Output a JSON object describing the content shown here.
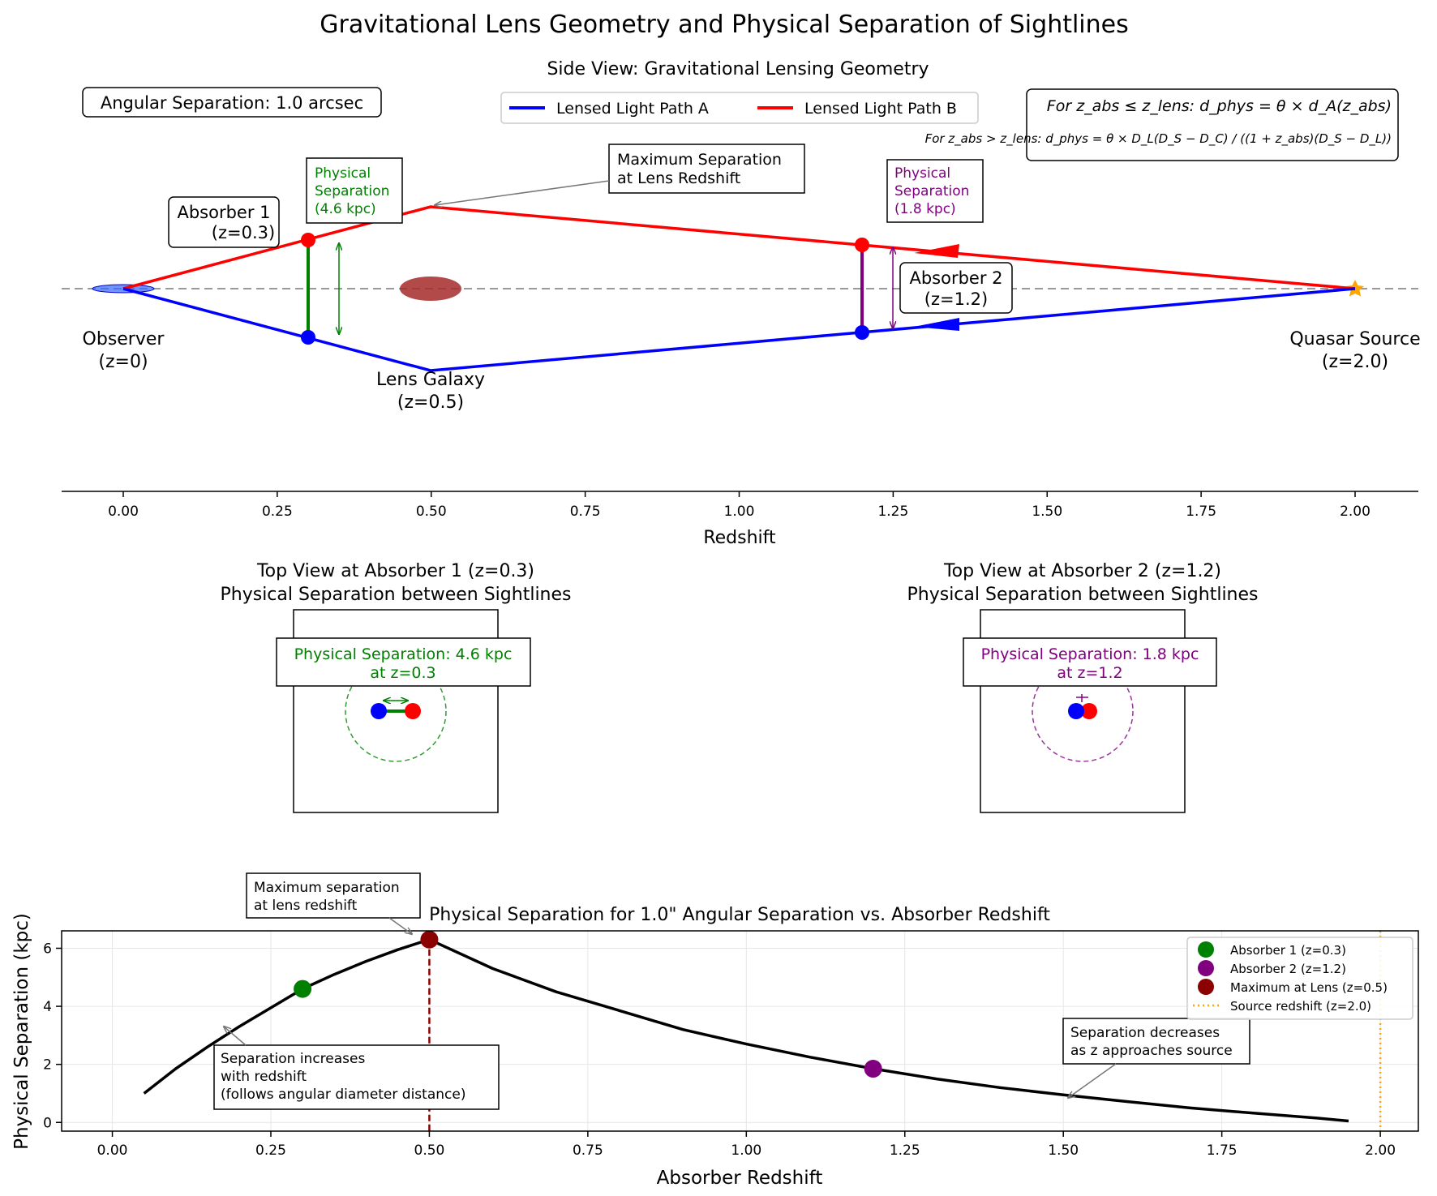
{
  "title": "Gravitational Lens Geometry and Physical Separation of Sightlines",
  "side_view": {
    "title": "Side View: Gravitational Lensing Geometry",
    "angular_box": "Angular Separation: 1.0 arcsec",
    "legend": [
      "Lensed Light Path A",
      "Lensed Light Path B"
    ],
    "formula_line1": "For z_abs ≤ z_lens: d_phys = θ × d_A(z_abs)",
    "formula_line2": "For z_abs > z_lens: d_phys = θ × D_L(D_S − D_C) / ((1 + z_abs)(D_S − D_L))",
    "observer": [
      "Observer",
      "(z=0)"
    ],
    "lens": [
      "Lens Galaxy",
      "(z=0.5)"
    ],
    "source": [
      "Quasar Source",
      "(z=2.0)"
    ],
    "absorber1": [
      "Absorber 1",
      "(z=0.3)"
    ],
    "absorber2": [
      "Absorber 2",
      "(z=1.2)"
    ],
    "sep1": [
      "Physical",
      "Separation",
      "(4.6 kpc)"
    ],
    "sep2": [
      "Physical",
      "Separation",
      "(1.8 kpc)"
    ],
    "max_note": [
      "Maximum Separation",
      "at Lens Redshift"
    ],
    "xlabel": "Redshift",
    "xticks": [
      "0.00",
      "0.25",
      "0.50",
      "0.75",
      "1.00",
      "1.25",
      "1.50",
      "1.75",
      "2.00"
    ]
  },
  "top_view_1": {
    "title": [
      "Top View at Absorber 1 (z=0.3)",
      "Physical Separation between Sightlines"
    ],
    "box": [
      "Physical Separation: 4.6 kpc",
      "at z=0.3"
    ]
  },
  "top_view_2": {
    "title": [
      "Top View at Absorber 2 (z=1.2)",
      "Physical Separation between Sightlines"
    ],
    "box": [
      "Physical Separation: 1.8 kpc",
      "at z=1.2"
    ]
  },
  "colors": {
    "path_a": "#0000ff",
    "path_b": "#ff0000",
    "absorber1": "#008000",
    "absorber2": "#800080",
    "max_point": "#8b0000",
    "source": "#ffa500",
    "lens": "#a52a2a"
  },
  "chart_data": {
    "type": "line",
    "title": "Physical Separation for 1.0\" Angular Separation vs. Absorber Redshift",
    "xlabel": "Absorber Redshift",
    "ylabel": "Physical Separation (kpc)",
    "xlim": [
      -0.08,
      2.06
    ],
    "ylim": [
      -0.3,
      6.6
    ],
    "xticks": [
      "0.00",
      "0.25",
      "0.50",
      "0.75",
      "1.00",
      "1.25",
      "1.50",
      "1.75",
      "2.00"
    ],
    "yticks": [
      "0",
      "2",
      "4",
      "6"
    ],
    "grid": true,
    "legend_position": "top-right",
    "curve": {
      "x": [
        0.05,
        0.1,
        0.15,
        0.2,
        0.25,
        0.3,
        0.35,
        0.4,
        0.45,
        0.5,
        0.6,
        0.7,
        0.8,
        0.9,
        1.0,
        1.1,
        1.2,
        1.3,
        1.4,
        1.5,
        1.6,
        1.7,
        1.8,
        1.9,
        1.95
      ],
      "y": [
        1.0,
        1.85,
        2.6,
        3.3,
        3.95,
        4.6,
        5.1,
        5.55,
        5.95,
        6.3,
        5.3,
        4.5,
        3.85,
        3.2,
        2.7,
        2.25,
        1.85,
        1.5,
        1.2,
        0.95,
        0.72,
        0.5,
        0.32,
        0.15,
        0.05
      ]
    },
    "points": [
      {
        "name": "Absorber 1 (z=0.3)",
        "x": 0.3,
        "y": 4.6
      },
      {
        "name": "Absorber 2 (z=1.2)",
        "x": 1.2,
        "y": 1.85
      },
      {
        "name": "Maximum at Lens (z=0.5)",
        "x": 0.5,
        "y": 6.3
      }
    ],
    "vlines": [
      {
        "name": "",
        "x": 0.5
      },
      {
        "name": "Source redshift (z=2.0)",
        "x": 2.0
      }
    ],
    "annotations": [
      [
        "Maximum separation",
        "at lens redshift"
      ],
      [
        "Separation increases",
        "with redshift",
        "(follows angular diameter distance)"
      ],
      [
        "Separation decreases",
        "as z approaches source"
      ]
    ]
  }
}
